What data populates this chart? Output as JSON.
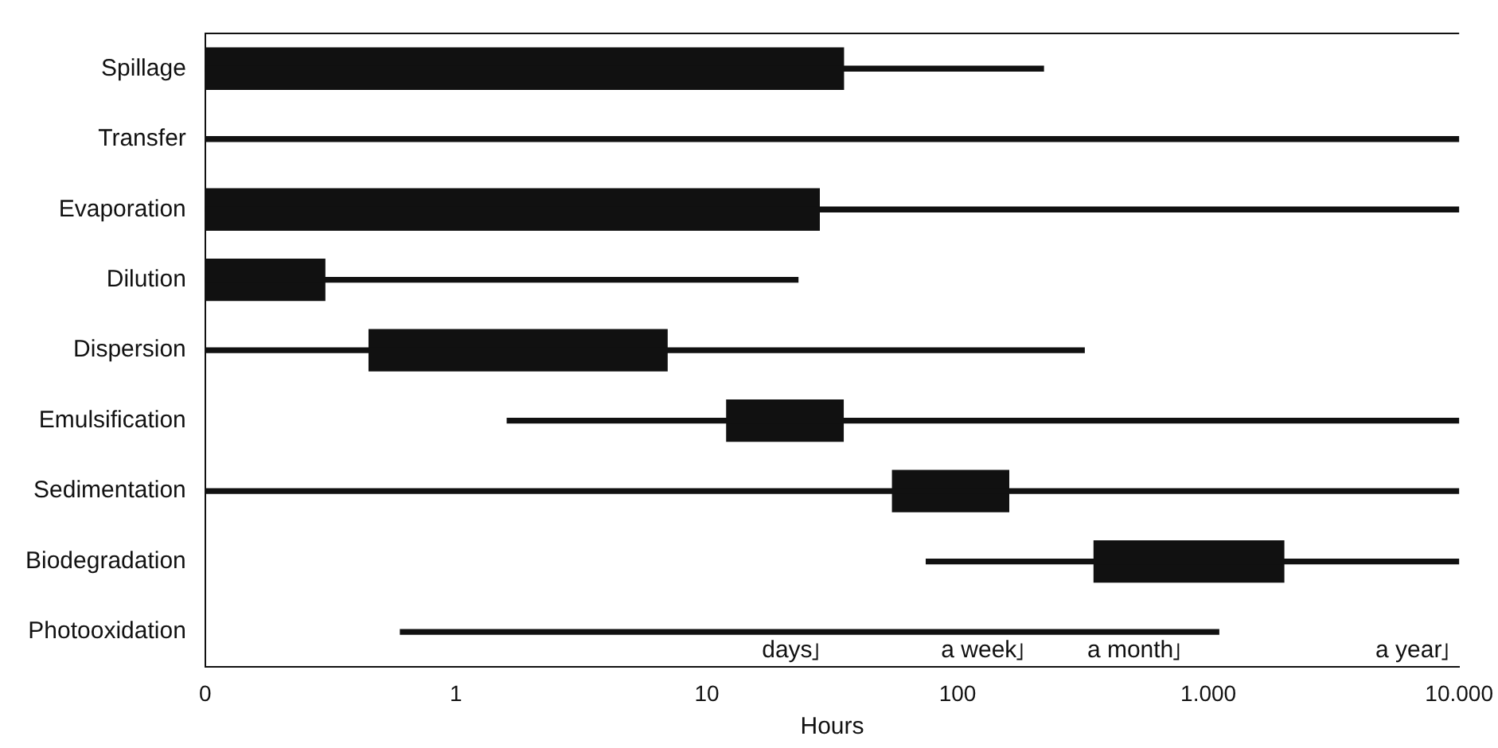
{
  "chart_data": {
    "type": "bar",
    "orientation": "horizontal",
    "xlabel": "Hours",
    "log": "x",
    "categories": [
      "Spillage",
      "Transfer",
      "Evaporation",
      "Dilution",
      "Dispersion",
      "Emulsification",
      "Sedimentation",
      "Biodegradation",
      "Photooxidation"
    ],
    "xlim": [
      0.1,
      10000
    ],
    "xticks": [
      {
        "value": 0.1,
        "label": "0"
      },
      1,
      10,
      100,
      {
        "value": 1000,
        "label": "1.000"
      },
      {
        "value": 10000,
        "label": "10.000"
      }
    ],
    "series": [
      {
        "color": "#111111",
        "base": [
          0.1,
          0.1,
          0.1,
          0.1,
          0.1,
          1.6,
          0.1,
          75,
          0.6
        ],
        "values": [
          220,
          9999,
          9999,
          23,
          320,
          9998,
          9999,
          9925,
          1100
        ]
      },
      {
        "color": "#111111",
        "base": [
          0.1,
          null,
          0.1,
          0.1,
          0.45,
          12,
          55,
          350,
          null
        ],
        "values": [
          35,
          null,
          28,
          0.2,
          6.5,
          23,
          105,
          1650,
          null
        ]
      }
    ],
    "annotations": [
      "days",
      "a week",
      "a month",
      "a year"
    ],
    "grid": false,
    "legend": false
  }
}
